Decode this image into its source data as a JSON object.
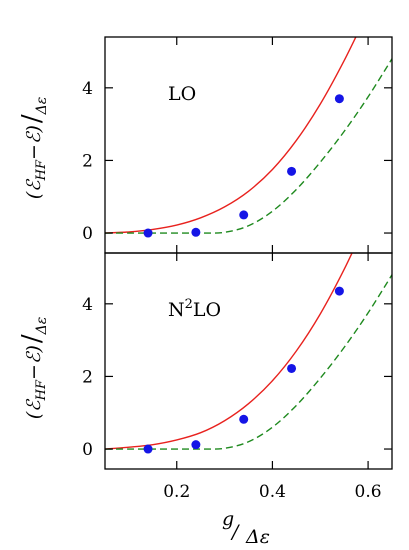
{
  "chart_data": [
    {
      "type": "line",
      "panel": "top",
      "annotation": "LO",
      "ylabel": "(ℰHF−ℰ)/Δε",
      "xlim": [
        0.05,
        0.65
      ],
      "ylim": [
        -0.55,
        5.4
      ],
      "xticks": [
        0.2,
        0.4,
        0.6
      ],
      "yticks": [
        0,
        2,
        4
      ],
      "ytick_labels": [
        "0",
        "2",
        "4"
      ],
      "grid": false,
      "series": [
        {
          "style": "solid-line",
          "color": "#e8221e",
          "x": [
            0.05,
            0.1,
            0.15,
            0.2,
            0.25,
            0.3,
            0.35,
            0.4,
            0.45,
            0.5,
            0.55,
            0.6
          ],
          "y": [
            0.0,
            0.03,
            0.1,
            0.22,
            0.42,
            0.72,
            1.15,
            1.75,
            2.55,
            3.55,
            4.75,
            6.1
          ]
        },
        {
          "style": "dashed-line",
          "color": "#1f8a1f",
          "x": [
            0.05,
            0.1,
            0.15,
            0.2,
            0.25,
            0.3,
            0.35,
            0.4,
            0.45,
            0.5,
            0.55,
            0.6,
            0.65
          ],
          "y": [
            0.0,
            0.0,
            0.0,
            0.0,
            0.0,
            0.02,
            0.2,
            0.6,
            1.2,
            1.95,
            2.8,
            3.75,
            4.8
          ]
        },
        {
          "style": "markers",
          "color": "#1515e6",
          "x": [
            0.14,
            0.24,
            0.34,
            0.44,
            0.54
          ],
          "y": [
            0.0,
            0.02,
            0.5,
            1.7,
            3.7
          ]
        }
      ]
    },
    {
      "type": "line",
      "panel": "bottom",
      "annotation_main": "N",
      "annotation_sup": "2",
      "annotation_tail": "LO",
      "xlabel": "g/Δε",
      "ylabel": "(ℰHF−ℰ)/Δε",
      "xlim": [
        0.05,
        0.65
      ],
      "ylim": [
        -0.55,
        5.4
      ],
      "xticks": [
        0.2,
        0.4,
        0.6
      ],
      "xtick_labels": [
        "0.2",
        "0.4",
        "0.6"
      ],
      "yticks": [
        0,
        2,
        4
      ],
      "ytick_labels": [
        "0",
        "2",
        "4"
      ],
      "grid": false,
      "series": [
        {
          "style": "solid-line",
          "color": "#e8221e",
          "x": [
            0.05,
            0.1,
            0.15,
            0.2,
            0.25,
            0.3,
            0.35,
            0.4,
            0.45,
            0.5,
            0.55,
            0.6
          ],
          "y": [
            0.0,
            0.05,
            0.12,
            0.25,
            0.45,
            0.78,
            1.25,
            1.88,
            2.7,
            3.72,
            4.95,
            6.35
          ]
        },
        {
          "style": "dashed-line",
          "color": "#1f8a1f",
          "x": [
            0.05,
            0.1,
            0.15,
            0.2,
            0.25,
            0.3,
            0.35,
            0.4,
            0.45,
            0.5,
            0.55,
            0.6,
            0.65
          ],
          "y": [
            0.0,
            0.0,
            0.0,
            0.0,
            0.0,
            0.02,
            0.2,
            0.6,
            1.2,
            1.95,
            2.8,
            3.75,
            4.8
          ]
        },
        {
          "style": "markers",
          "color": "#1515e6",
          "x": [
            0.14,
            0.24,
            0.34,
            0.44,
            0.54
          ],
          "y": [
            0.0,
            0.12,
            0.82,
            2.22,
            4.35
          ]
        }
      ]
    }
  ]
}
